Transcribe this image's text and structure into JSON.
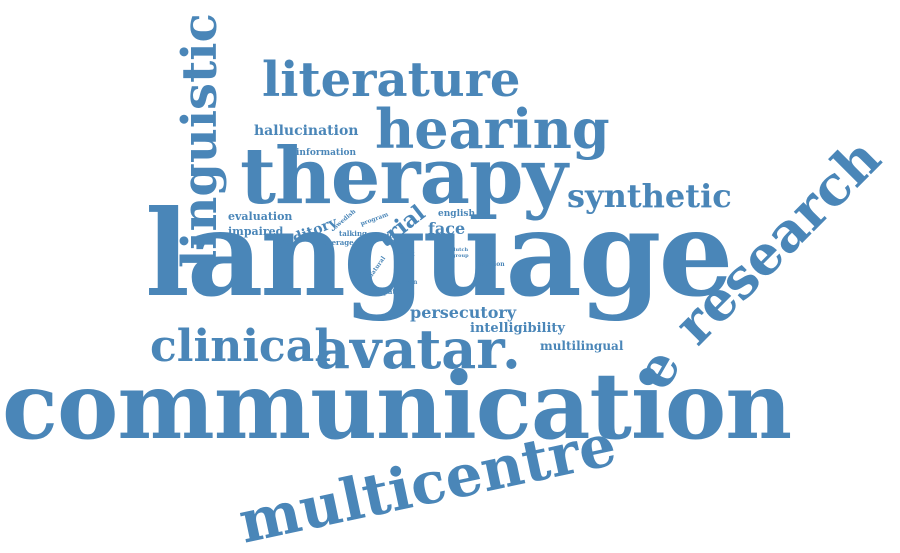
{
  "color": "#4a86b8",
  "words": {
    "communication": "communication",
    "language": "language",
    "therapy": "therapy",
    "hearing": "hearing",
    "literature": "literature",
    "linguistic": "linguistic",
    "research": "research",
    "e": "e",
    "multicentre": "multicentre",
    "avatar": "avatar",
    "clinical": "clinical",
    "synthetic": "synthetic",
    "hallucination": "hallucination",
    "information": "information",
    "persecutory": "persecutory",
    "intelligibility": "intelligibility",
    "multilingual": "multilingual",
    "trial": "trial",
    "face": "face",
    "evaluation": "evaluation",
    "impaired": "impaired",
    "auditory": "auditory",
    "english": "english",
    "voice": "voice",
    "talking": "talking",
    "average": "average",
    "swedish": "swedish",
    "program": "program",
    "work": "work",
    "dutch": "dutch",
    "group": "group",
    "session": "session",
    "natural": "natural",
    "human": "human",
    "patient": "patient",
    "dot": "."
  }
}
